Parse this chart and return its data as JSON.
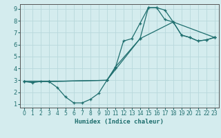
{
  "xlabel": "Humidex (Indice chaleur)",
  "bg_color": "#d4ecee",
  "grid_color": "#b8d8dc",
  "line_color": "#1e6e6e",
  "spine_color": "#555555",
  "xlim": [
    -0.5,
    23.5
  ],
  "ylim": [
    0.7,
    9.4
  ],
  "xticks": [
    0,
    1,
    2,
    3,
    4,
    5,
    6,
    7,
    8,
    9,
    10,
    11,
    12,
    13,
    14,
    15,
    16,
    17,
    18,
    19,
    20,
    21,
    22,
    23
  ],
  "yticks": [
    1,
    2,
    3,
    4,
    5,
    6,
    7,
    8,
    9
  ],
  "line1_x": [
    0,
    1,
    2,
    3,
    4,
    5,
    6,
    7,
    8,
    9,
    10,
    11,
    12,
    13,
    14,
    15,
    16,
    17,
    18,
    19,
    20,
    21,
    22,
    23
  ],
  "line1_y": [
    2.9,
    2.8,
    2.9,
    2.9,
    2.4,
    1.6,
    1.1,
    1.1,
    1.4,
    1.9,
    3.0,
    4.0,
    6.3,
    6.5,
    7.8,
    9.1,
    9.1,
    8.9,
    7.9,
    6.8,
    6.6,
    6.3,
    6.4,
    6.6
  ],
  "line2_x": [
    0,
    3,
    10,
    11,
    14,
    15,
    16,
    17,
    18,
    19,
    20,
    21,
    22,
    23
  ],
  "line2_y": [
    2.9,
    2.9,
    3.0,
    4.1,
    6.5,
    9.1,
    9.1,
    8.1,
    7.9,
    6.8,
    6.6,
    6.3,
    6.4,
    6.6
  ],
  "line3_x": [
    0,
    3,
    10,
    14,
    18,
    23
  ],
  "line3_y": [
    2.9,
    2.9,
    3.0,
    6.5,
    7.9,
    6.6
  ],
  "tick_fontsize": 5.5,
  "xlabel_fontsize": 6.5
}
